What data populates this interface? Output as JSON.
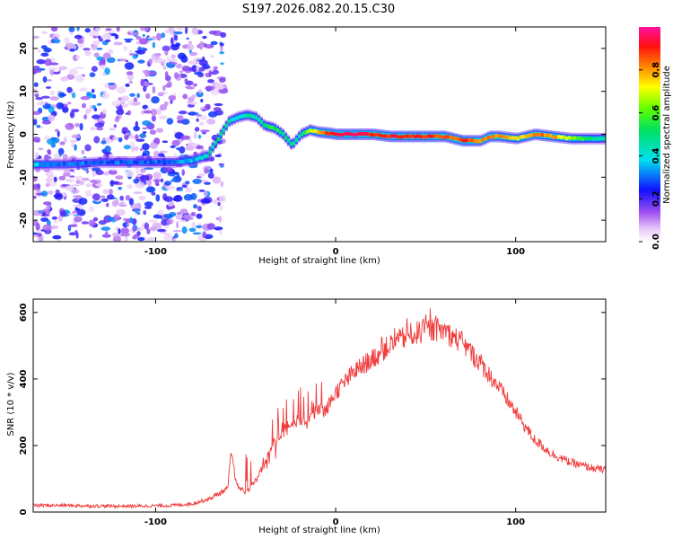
{
  "chart_data": [
    {
      "type": "heatmap",
      "title": "S197.2026.082.20.15.C30",
      "xlabel": "Height of straight line (km)",
      "ylabel": "Frequency (Hz)",
      "xlim": [
        -168,
        150
      ],
      "ylim": [
        -25,
        25
      ],
      "xticks": [
        -100,
        0,
        100
      ],
      "xtick_labels": [
        "-100",
        "0",
        "100"
      ],
      "yticks": [
        -20,
        -10,
        0,
        10,
        20
      ],
      "ytick_labels": [
        "-20",
        "-10",
        "0",
        "10",
        "20"
      ],
      "colorbar": {
        "label": "Normalized spectral amplitude",
        "range": [
          0,
          1
        ],
        "ticks": [
          0.0,
          0.2,
          0.4,
          0.6,
          0.8
        ],
        "tick_labels": [
          "0.0",
          "0.2",
          "0.4",
          "0.6",
          "0.8"
        ],
        "colormap": "rainbow (white-purple-blue-cyan-green-yellow-red-magenta)"
      },
      "dominant_frequency_track": {
        "x": [
          -168,
          -150,
          -130,
          -110,
          -90,
          -80,
          -72,
          -66,
          -60,
          -55,
          -50,
          -45,
          -40,
          -35,
          -30,
          -25,
          -20,
          -15,
          -10,
          -5,
          0,
          10,
          20,
          30,
          40,
          50,
          60,
          65,
          70,
          75,
          80,
          85,
          90,
          100,
          110,
          120,
          130,
          140,
          150
        ],
        "y": [
          -7,
          -7,
          -6.5,
          -6.5,
          -6.5,
          -6,
          -5,
          -1,
          3,
          4,
          4.5,
          4,
          2,
          1.5,
          0,
          -2.5,
          0,
          1,
          0.5,
          0.3,
          0,
          0,
          0,
          -0.5,
          -0.5,
          -0.5,
          -0.5,
          -1,
          -1.5,
          -1.5,
          -1.5,
          -0.5,
          -0.5,
          -1,
          0,
          -0.5,
          -1,
          -1,
          -1
        ],
        "amplitude": [
          0.35,
          0.3,
          0.3,
          0.3,
          0.3,
          0.35,
          0.45,
          0.5,
          0.45,
          0.4,
          0.45,
          0.45,
          0.5,
          0.55,
          0.5,
          0.45,
          0.5,
          0.65,
          0.8,
          0.9,
          0.95,
          0.95,
          0.9,
          0.9,
          0.9,
          0.9,
          0.85,
          0.85,
          0.9,
          0.85,
          0.8,
          0.85,
          0.8,
          0.7,
          0.85,
          0.8,
          0.65,
          0.5,
          0.45
        ]
      },
      "noise_region": {
        "x_range": [
          -168,
          -62
        ],
        "y_range": [
          -25,
          25
        ],
        "amplitude_range": [
          0,
          0.3
        ]
      }
    },
    {
      "type": "line",
      "title": "",
      "xlabel": "Height of straight line (km)",
      "ylabel": "SNR (10 * v/v)",
      "xlim": [
        -168,
        150
      ],
      "ylim": [
        0,
        640
      ],
      "xticks": [
        -100,
        0,
        100
      ],
      "xtick_labels": [
        "-100",
        "0",
        "100"
      ],
      "yticks": [
        0,
        200,
        400,
        600
      ],
      "ytick_labels": [
        "0",
        "200",
        "400",
        "600"
      ],
      "color": "#f03c3c",
      "series": [
        {
          "name": "SNR",
          "x": [
            -168,
            -150,
            -130,
            -110,
            -90,
            -80,
            -70,
            -65,
            -60,
            -58,
            -55,
            -50,
            -45,
            -40,
            -35,
            -30,
            -25,
            -20,
            -15,
            -10,
            -5,
            0,
            10,
            20,
            30,
            40,
            50,
            55,
            60,
            70,
            80,
            90,
            100,
            110,
            120,
            130,
            140,
            150
          ],
          "values": [
            20,
            20,
            18,
            18,
            20,
            25,
            40,
            55,
            70,
            180,
            80,
            60,
            90,
            140,
            200,
            230,
            260,
            270,
            290,
            300,
            310,
            360,
            420,
            460,
            500,
            530,
            545,
            550,
            545,
            510,
            450,
            380,
            300,
            220,
            175,
            150,
            135,
            125
          ]
        }
      ]
    }
  ]
}
